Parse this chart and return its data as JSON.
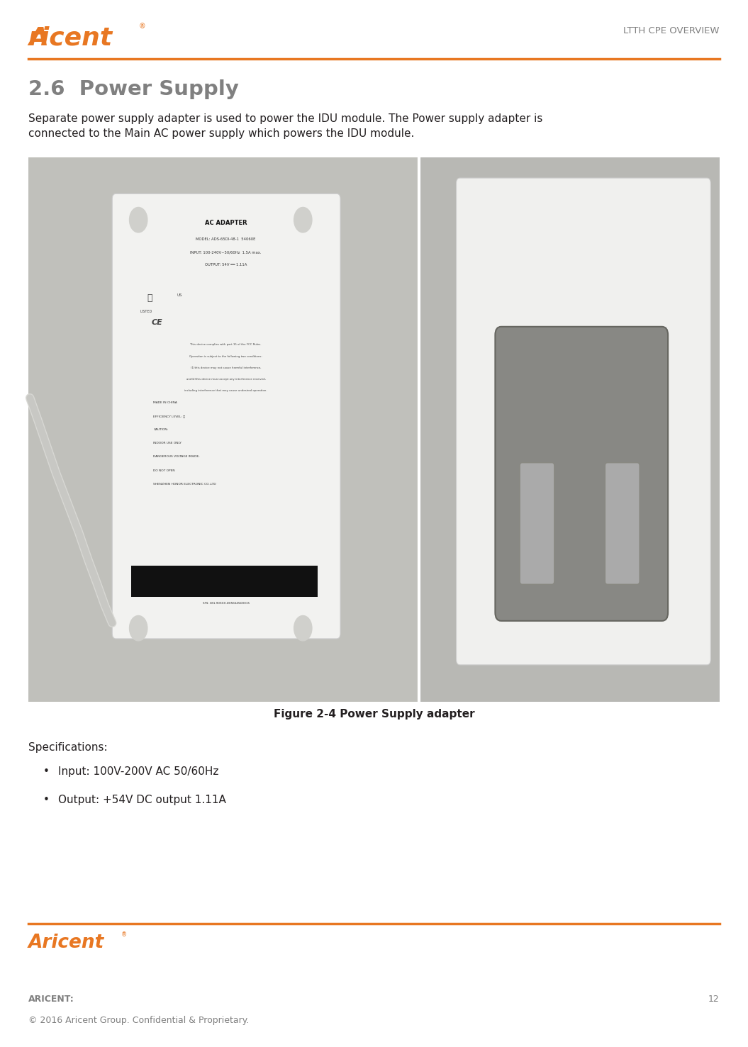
{
  "title_header": "LTTH CPE OVERVIEW",
  "section_title": "2.6  Power Supply",
  "body_text": "Separate power supply adapter is used to power the IDU module. The Power supply adapter is\nconnected to the Main AC power supply which powers the IDU module.",
  "figure_caption": "Figure 2-4 Power Supply adapter",
  "specs_title": "Specifications:",
  "bullet_points": [
    "Input: 100V-200V AC 50/60Hz",
    "Output: +54V DC output 1.11A"
  ],
  "footer_label": "ARICENT:",
  "footer_copyright": "© 2016 Aricent Group. Confidential & Proprietary.",
  "page_number": "12",
  "orange_color": "#E87722",
  "header_text_color": "#808080",
  "body_text_color": "#231F20",
  "section_title_color": "#808080",
  "footer_text_color": "#808080",
  "bg_color": "#FFFFFF",
  "line_color": "#E87722"
}
